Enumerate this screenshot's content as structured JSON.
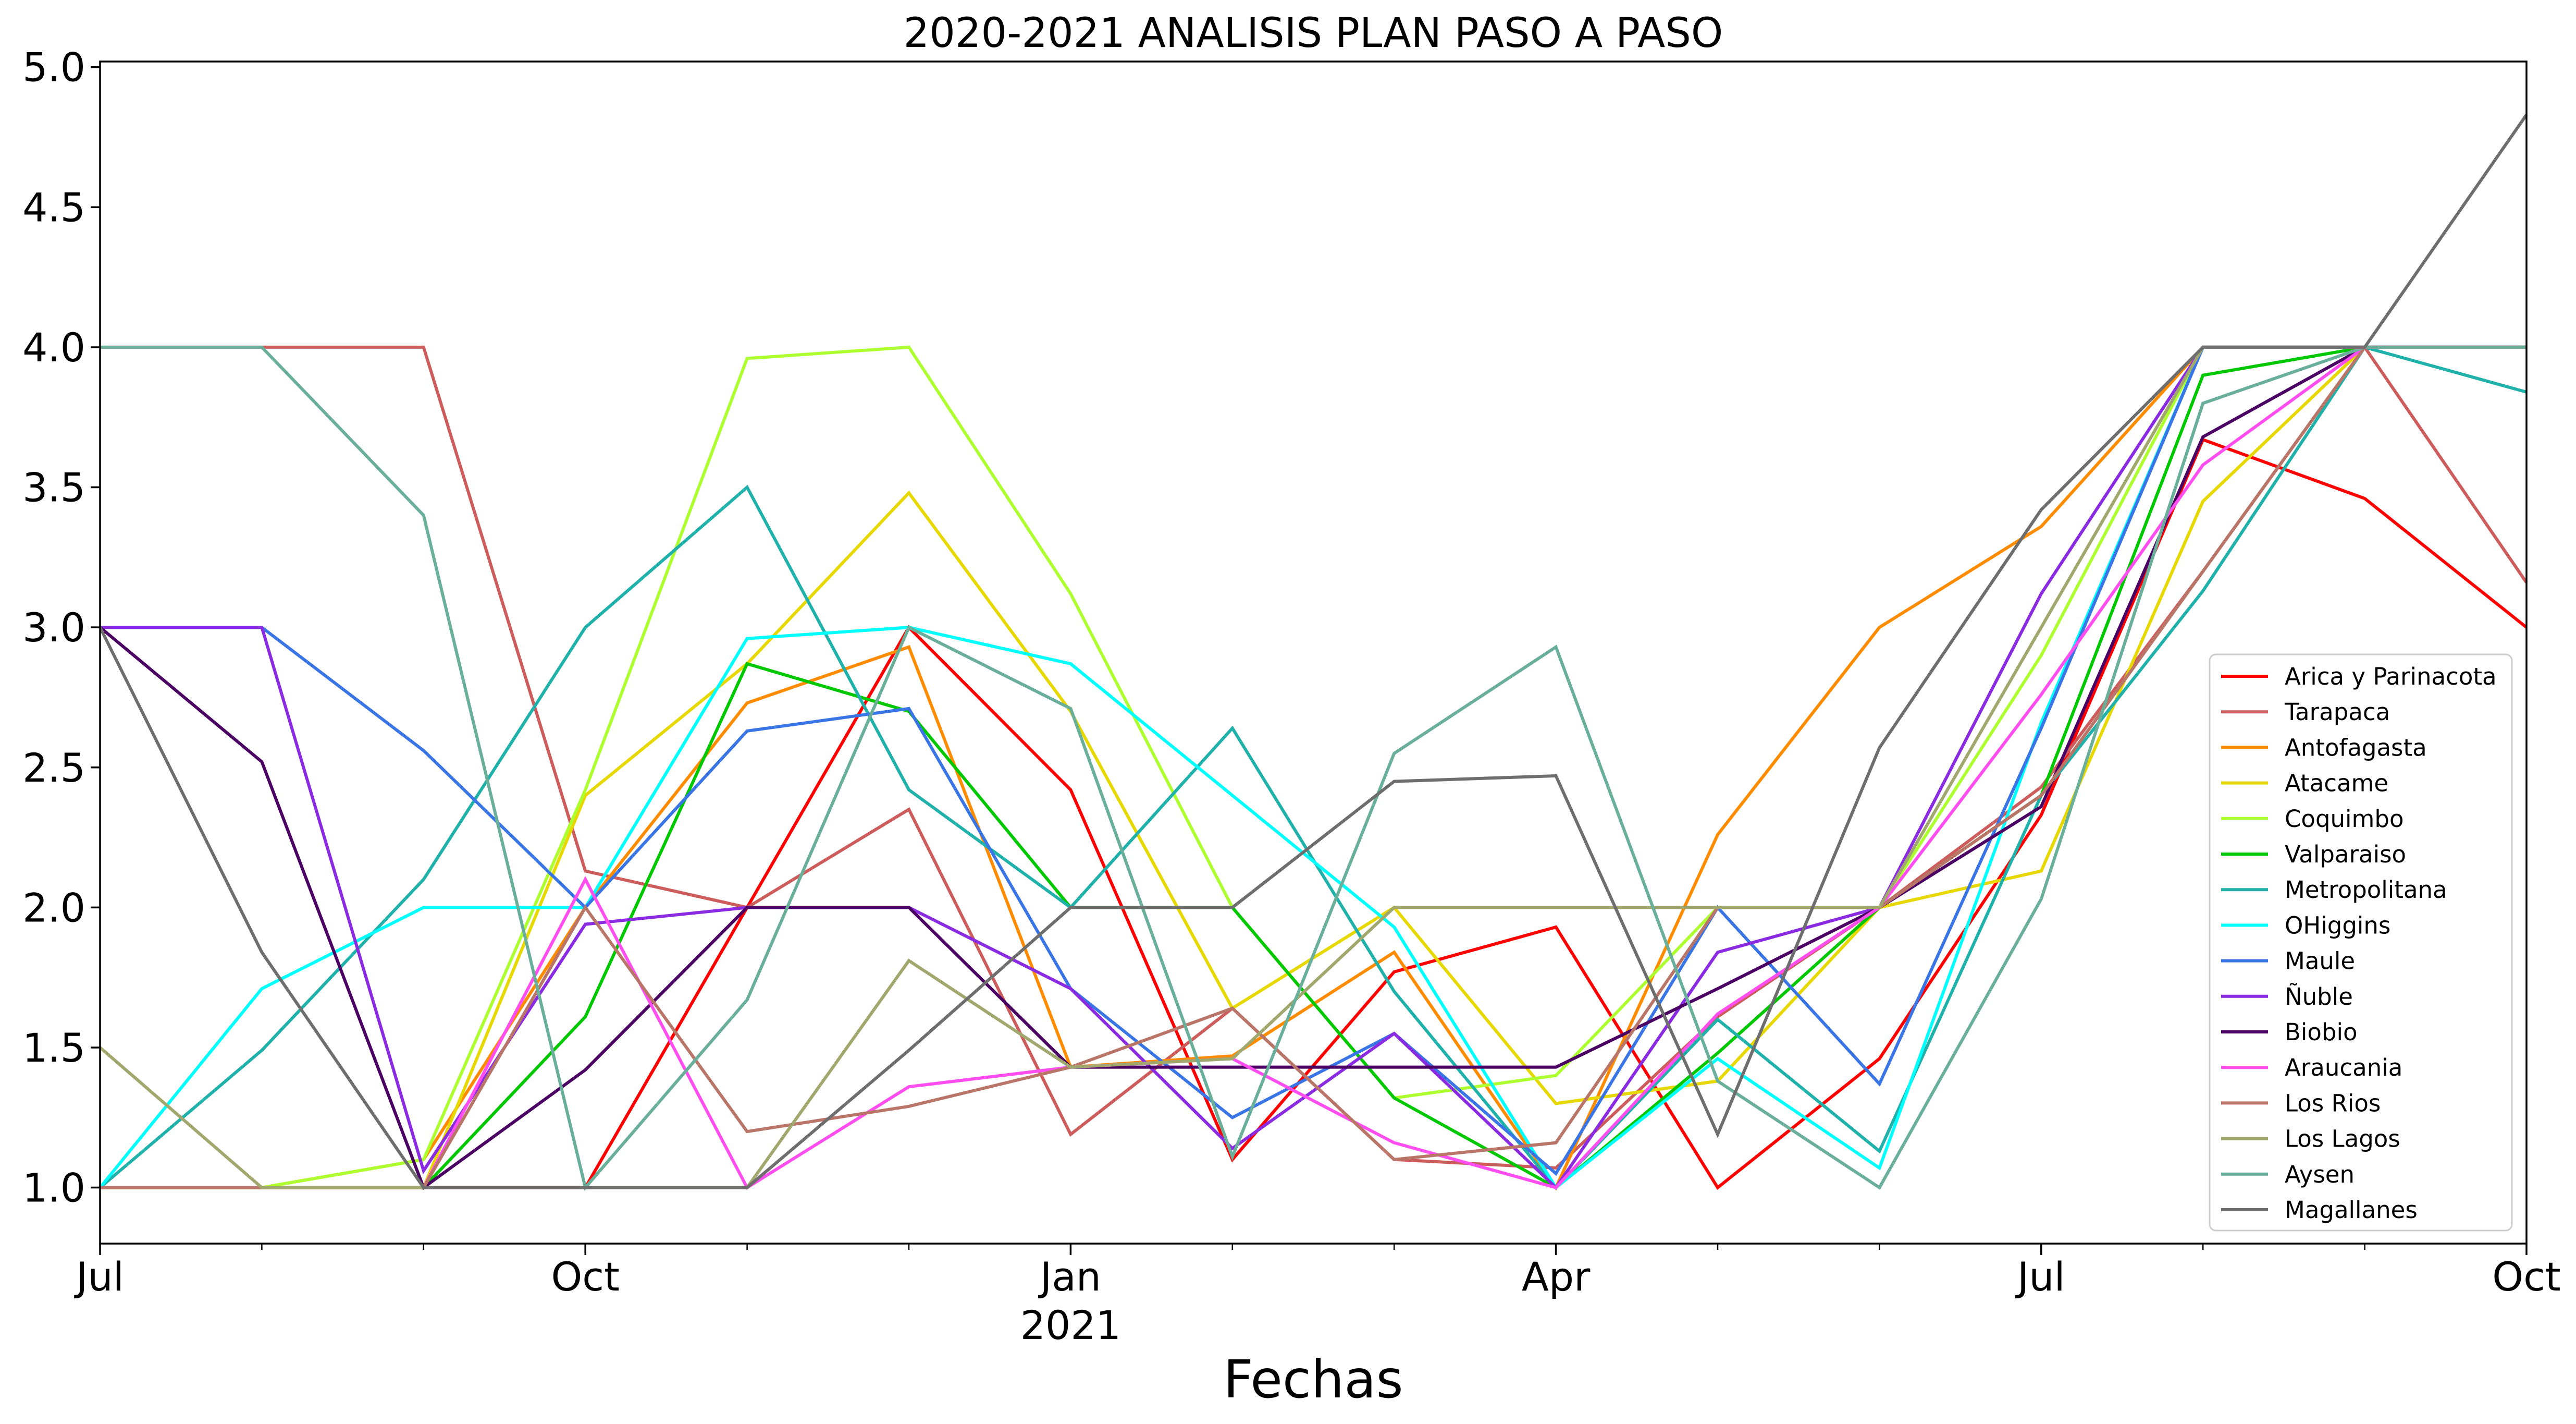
{
  "chart_data": {
    "type": "line",
    "title": "2020-2021 ANALISIS PLAN PASO A PASO",
    "xlabel": "Fechas",
    "ylabel": "",
    "ylim": [
      0.8,
      5.02
    ],
    "yticks": [
      1.0,
      1.5,
      2.0,
      2.5,
      3.0,
      3.5,
      4.0,
      4.5,
      5.0
    ],
    "ytick_labels": [
      "1.0",
      "1.5",
      "2.0",
      "2.5",
      "3.0",
      "3.5",
      "4.0",
      "4.5",
      "5.0"
    ],
    "x": [
      "2020-07",
      "2020-08",
      "2020-09",
      "2020-10",
      "2020-11",
      "2020-12",
      "2021-01",
      "2021-02",
      "2021-03",
      "2021-04",
      "2021-05",
      "2021-06",
      "2021-07",
      "2021-08",
      "2021-09",
      "2021-10"
    ],
    "xticks_major": [
      {
        "x": "2020-07",
        "label": "Jul",
        "sublabel": ""
      },
      {
        "x": "2020-10",
        "label": "Oct",
        "sublabel": ""
      },
      {
        "x": "2021-01",
        "label": "Jan",
        "sublabel": "2021"
      },
      {
        "x": "2021-04",
        "label": "Apr",
        "sublabel": ""
      },
      {
        "x": "2021-07",
        "label": "Jul",
        "sublabel": ""
      },
      {
        "x": "2021-10",
        "label": "Oct",
        "sublabel": ""
      }
    ],
    "grid": false,
    "legend_position": "lower-right",
    "series": [
      {
        "name": "Arica y Parinacota",
        "color": "#ff0000",
        "values": [
          1.0,
          1.0,
          1.0,
          1.0,
          2.0,
          3.0,
          2.42,
          1.1,
          1.77,
          1.93,
          1.0,
          1.46,
          2.33,
          3.67,
          3.46,
          3.0
        ]
      },
      {
        "name": "Tarapaca",
        "color": "#cd5c5c",
        "values": [
          4.0,
          4.0,
          4.0,
          2.13,
          2.0,
          2.35,
          1.19,
          1.64,
          1.1,
          1.07,
          1.61,
          2.0,
          2.43,
          3.2,
          4.0,
          3.16
        ]
      },
      {
        "name": "Antofagasta",
        "color": "#ff8c00",
        "values": [
          1.0,
          1.0,
          1.1,
          2.0,
          2.73,
          2.93,
          1.43,
          1.47,
          1.84,
          1.0,
          2.26,
          3.0,
          3.36,
          4.0,
          4.0,
          4.0
        ]
      },
      {
        "name": "Atacame",
        "color": "#e6d800",
        "values": [
          1.0,
          1.0,
          1.0,
          2.4,
          2.87,
          3.48,
          2.7,
          1.64,
          2.0,
          1.3,
          1.38,
          2.0,
          2.13,
          3.45,
          4.0,
          4.0
        ]
      },
      {
        "name": "Coquimbo",
        "color": "#adff2f",
        "values": [
          1.0,
          1.0,
          1.1,
          2.42,
          3.96,
          4.0,
          3.12,
          2.0,
          1.32,
          1.4,
          2.0,
          2.0,
          2.9,
          4.0,
          4.0,
          4.0
        ]
      },
      {
        "name": "Valparaiso",
        "color": "#00c800",
        "values": [
          1.0,
          1.0,
          1.0,
          1.61,
          2.87,
          2.7,
          2.0,
          2.0,
          1.32,
          1.0,
          1.48,
          2.0,
          2.4,
          3.9,
          4.0,
          4.0
        ]
      },
      {
        "name": "Metropolitana",
        "color": "#20b2aa",
        "values": [
          1.0,
          1.49,
          2.1,
          3.0,
          3.5,
          2.42,
          2.0,
          2.64,
          1.7,
          1.0,
          1.6,
          1.13,
          2.4,
          3.13,
          4.0,
          3.84
        ]
      },
      {
        "name": "OHiggins",
        "color": "#00ffff",
        "values": [
          1.0,
          1.71,
          2.0,
          2.0,
          2.96,
          3.0,
          2.87,
          2.4,
          1.93,
          1.0,
          1.46,
          1.07,
          2.66,
          4.0,
          4.0,
          4.0
        ]
      },
      {
        "name": "Maule",
        "color": "#3a75e6",
        "values": [
          3.0,
          3.0,
          2.56,
          2.0,
          2.63,
          2.71,
          1.71,
          1.25,
          1.55,
          1.05,
          2.0,
          1.37,
          2.64,
          4.0,
          4.0,
          4.0
        ]
      },
      {
        "name": "Ñuble",
        "color": "#8a2be2",
        "values": [
          3.0,
          3.0,
          1.06,
          1.94,
          2.0,
          2.0,
          1.71,
          1.14,
          1.55,
          1.0,
          1.84,
          2.0,
          3.12,
          4.0,
          4.0,
          4.0
        ]
      },
      {
        "name": "Biobio",
        "color": "#4b0063",
        "values": [
          3.0,
          2.52,
          1.0,
          1.42,
          2.0,
          2.0,
          1.43,
          1.43,
          1.43,
          1.43,
          1.71,
          2.0,
          2.36,
          3.68,
          4.0,
          4.0
        ]
      },
      {
        "name": "Araucania",
        "color": "#ff4df0",
        "values": [
          1.0,
          1.0,
          1.0,
          2.1,
          1.0,
          1.36,
          1.43,
          1.46,
          1.16,
          1.0,
          1.62,
          2.0,
          2.76,
          3.58,
          4.0,
          4.0
        ]
      },
      {
        "name": "Los Rios",
        "color": "#b87568",
        "values": [
          1.0,
          1.0,
          1.0,
          2.0,
          1.2,
          1.29,
          1.43,
          1.64,
          1.1,
          1.16,
          2.0,
          2.0,
          2.4,
          3.2,
          4.0,
          4.0
        ]
      },
      {
        "name": "Los Lagos",
        "color": "#a0a86e",
        "values": [
          1.5,
          1.0,
          1.0,
          1.0,
          1.0,
          1.81,
          1.43,
          1.46,
          2.0,
          2.0,
          2.0,
          2.0,
          3.0,
          4.0,
          4.0,
          4.0
        ]
      },
      {
        "name": "Aysen",
        "color": "#6aaf9a",
        "values": [
          4.0,
          4.0,
          3.4,
          1.0,
          1.67,
          3.0,
          2.71,
          1.11,
          2.55,
          2.93,
          1.38,
          1.0,
          2.03,
          3.8,
          4.0,
          4.0
        ]
      },
      {
        "name": "Magallanes",
        "color": "#6e6e6e",
        "values": [
          3.0,
          1.84,
          1.0,
          1.0,
          1.0,
          1.49,
          2.0,
          2.0,
          2.45,
          2.47,
          1.19,
          2.57,
          3.42,
          4.0,
          4.0,
          4.83
        ]
      }
    ]
  }
}
